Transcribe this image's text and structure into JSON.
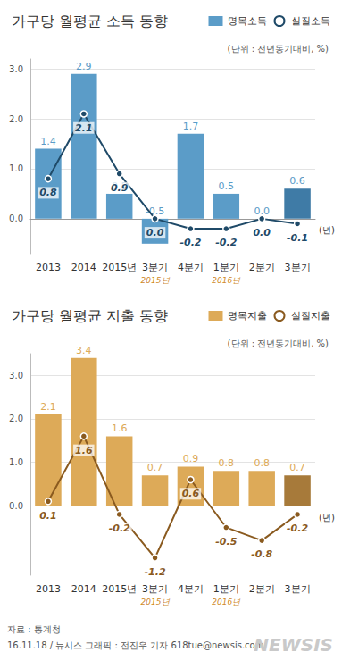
{
  "chart_data": [
    {
      "type": "bar",
      "title": "가구당 월평균 소득 동향",
      "subtitle": "(단위 : 전년동기대비, %)",
      "categories": [
        "2013",
        "2014",
        "2015년",
        "3분기",
        "4분기",
        "1분기",
        "2분기",
        "3분기"
      ],
      "x_sublabels": [
        null,
        null,
        null,
        "2015년",
        null,
        "2016년",
        null,
        null
      ],
      "x_label": "(년)",
      "series": [
        {
          "name": "명목소득",
          "type": "bar",
          "color": "#5b9cc8",
          "colors": [
            "#5b9cc8",
            "#5b9cc8",
            "#5b9cc8",
            "#5b9cc8",
            "#5b9cc8",
            "#5b9cc8",
            "#5b9cc8",
            "#3f7ba6"
          ],
          "values": [
            1.4,
            2.9,
            0.5,
            -0.5,
            1.7,
            0.5,
            0.0,
            0.6
          ],
          "value_labels": [
            "1.4",
            "2.9",
            "0.5",
            "-0.5",
            "1.7",
            "0.5",
            "0.0",
            "0.6"
          ]
        },
        {
          "name": "실질소득",
          "type": "line",
          "color": "#1f4a68",
          "marker": "circle",
          "values": [
            0.8,
            2.1,
            0.9,
            0.0,
            -0.2,
            -0.2,
            0.0,
            -0.1
          ],
          "value_labels": [
            "0.8",
            "2.1",
            "0.9",
            "0.0",
            "-0.2",
            "-0.2",
            "0.0",
            "-0.1"
          ]
        }
      ],
      "ylim": [
        -0.7,
        3.2
      ],
      "yticks": [
        {
          "value": 0,
          "label": "0.0"
        },
        {
          "value": 1,
          "label": "1.0"
        },
        {
          "value": 2,
          "label": "2.0"
        },
        {
          "value": 3,
          "label": "3.0"
        }
      ],
      "grid": true,
      "legend": "top-right",
      "data_labels": true
    },
    {
      "type": "bar",
      "title": "가구당 월평균 지출 동향",
      "subtitle": "(단위 : 전년동기대비, %)",
      "categories": [
        "2013",
        "2014",
        "2015년",
        "3분기",
        "4분기",
        "1분기",
        "2분기",
        "3분기"
      ],
      "x_sublabels": [
        null,
        null,
        null,
        "2015년",
        null,
        "2016년",
        null,
        null
      ],
      "x_label": "(년)",
      "series": [
        {
          "name": "명목지출",
          "type": "bar",
          "color": "#ddaa58",
          "colors": [
            "#ddaa58",
            "#ddaa58",
            "#ddaa58",
            "#ddaa58",
            "#ddaa58",
            "#ddaa58",
            "#ddaa58",
            "#a77a3a"
          ],
          "values": [
            2.1,
            3.4,
            1.6,
            0.7,
            0.9,
            0.8,
            0.8,
            0.7
          ],
          "value_labels": [
            "2.1",
            "3.4",
            "1.6",
            "0.7",
            "0.9",
            "0.8",
            "0.8",
            "0.7"
          ]
        },
        {
          "name": "실질지출",
          "type": "line",
          "color": "#8a5a1f",
          "marker": "circle",
          "values": [
            0.1,
            1.6,
            -0.2,
            -1.2,
            0.6,
            -0.5,
            -0.8,
            -0.2
          ],
          "value_labels": [
            "0.1",
            "1.6",
            "-0.2",
            "-1.2",
            "0.6",
            "-0.5",
            "-0.8",
            "-0.2"
          ]
        }
      ],
      "ylim": [
        -1.6,
        3.5
      ],
      "yticks": [
        {
          "value": 0,
          "label": "0.0"
        },
        {
          "value": 1,
          "label": "1.0"
        },
        {
          "value": 2,
          "label": "2.0"
        },
        {
          "value": 3,
          "label": "3.0"
        }
      ],
      "grid": true,
      "legend": "top-right",
      "data_labels": true
    }
  ],
  "footer": {
    "source": "자료 : 통계청",
    "credit": "16.11.18 / 뉴시스 그래픽 : 전진우 기자 618tue@newsis.com",
    "watermark": "NEWSIS"
  }
}
